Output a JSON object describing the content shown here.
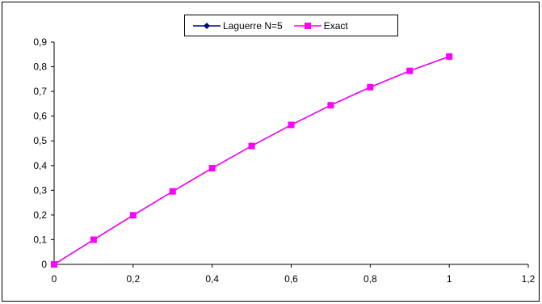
{
  "chart_data": {
    "type": "line",
    "title": "",
    "xlabel": "",
    "ylabel": "",
    "x": [
      0,
      0.1,
      0.2,
      0.3,
      0.4,
      0.5,
      0.6,
      0.7,
      0.8,
      0.9,
      1
    ],
    "series": [
      {
        "name": "Laguerre N=5",
        "color": "#000080",
        "marker": "diamond",
        "values": [
          0,
          0.0998,
          0.1987,
          0.2955,
          0.3894,
          0.4794,
          0.5646,
          0.6442,
          0.7174,
          0.7833,
          0.8415
        ]
      },
      {
        "name": "Exact",
        "color": "#FF00FF",
        "marker": "square",
        "values": [
          0,
          0.0998,
          0.1987,
          0.2955,
          0.3894,
          0.4794,
          0.5646,
          0.6442,
          0.7174,
          0.7833,
          0.8415
        ]
      }
    ],
    "xlim": [
      0,
      1.2
    ],
    "ylim": [
      0,
      0.9
    ],
    "x_ticks": [
      0,
      0.2,
      0.4,
      0.6,
      0.8,
      1,
      1.2
    ],
    "y_ticks": [
      0,
      0.1,
      0.2,
      0.3,
      0.4,
      0.5,
      0.6,
      0.7,
      0.8,
      0.9
    ],
    "x_tick_labels": [
      "0",
      "0,2",
      "0,4",
      "0,6",
      "0,8",
      "1",
      "1,2"
    ],
    "y_tick_labels": [
      "0",
      "0,1",
      "0,2",
      "0,3",
      "0,4",
      "0,5",
      "0,6",
      "0,7",
      "0,8",
      "0,9"
    ],
    "grid": false,
    "legend_position": "top-center"
  }
}
